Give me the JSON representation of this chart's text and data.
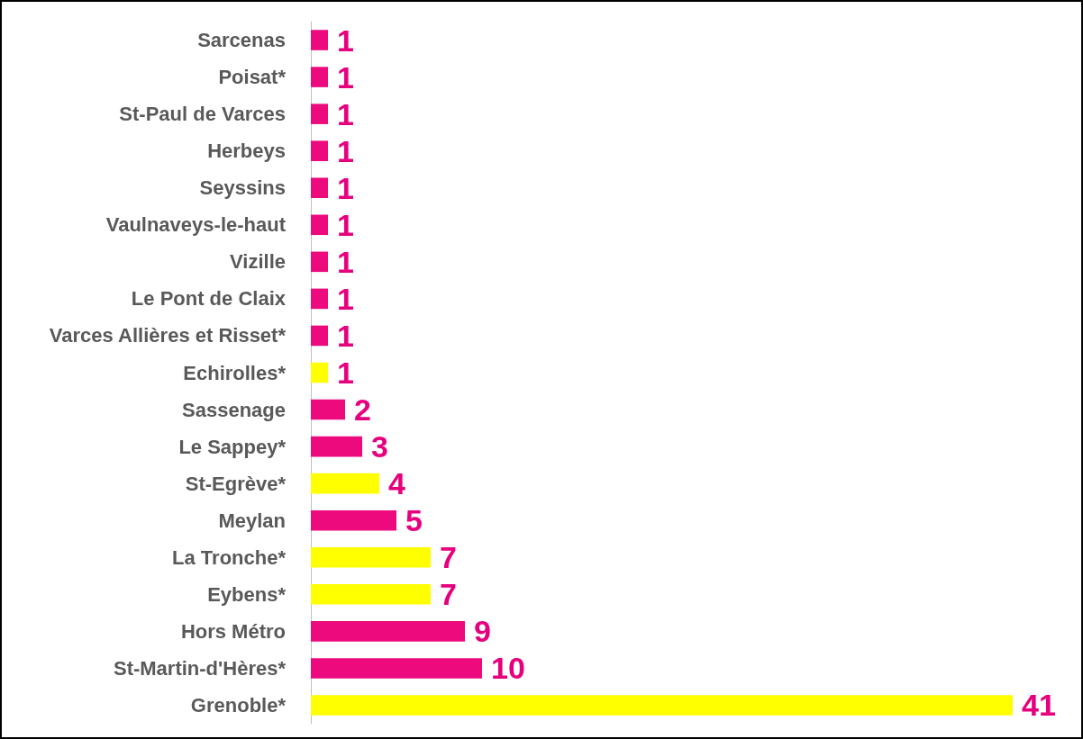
{
  "chart_data": {
    "type": "bar",
    "orientation": "horizontal",
    "categories": [
      "Sarcenas",
      "Poisat*",
      "St-Paul de Varces",
      "Herbeys",
      "Seyssins",
      "Vaulnaveys-le-haut",
      "Vizille",
      "Le Pont de Claix",
      "Varces Allières et Risset*",
      "Echirolles*",
      "Sassenage",
      "Le Sappey*",
      "St-Egrève*",
      "Meylan",
      "La Tronche*",
      "Eybens*",
      "Hors Métro",
      "St-Martin-d'Hères*",
      "Grenoble*"
    ],
    "values": [
      1,
      1,
      1,
      1,
      1,
      1,
      1,
      1,
      1,
      1,
      2,
      3,
      4,
      5,
      7,
      7,
      9,
      10,
      41
    ],
    "colors": [
      "#ec0a7d",
      "#ec0a7d",
      "#ec0a7d",
      "#ec0a7d",
      "#ec0a7d",
      "#ec0a7d",
      "#ec0a7d",
      "#ec0a7d",
      "#ec0a7d",
      "#ffff00",
      "#ec0a7d",
      "#ec0a7d",
      "#ffff00",
      "#ec0a7d",
      "#ffff00",
      "#ffff00",
      "#ec0a7d",
      "#ec0a7d",
      "#ffff00"
    ],
    "data_labels": true,
    "tick_labels": "y",
    "grid": false
  }
}
